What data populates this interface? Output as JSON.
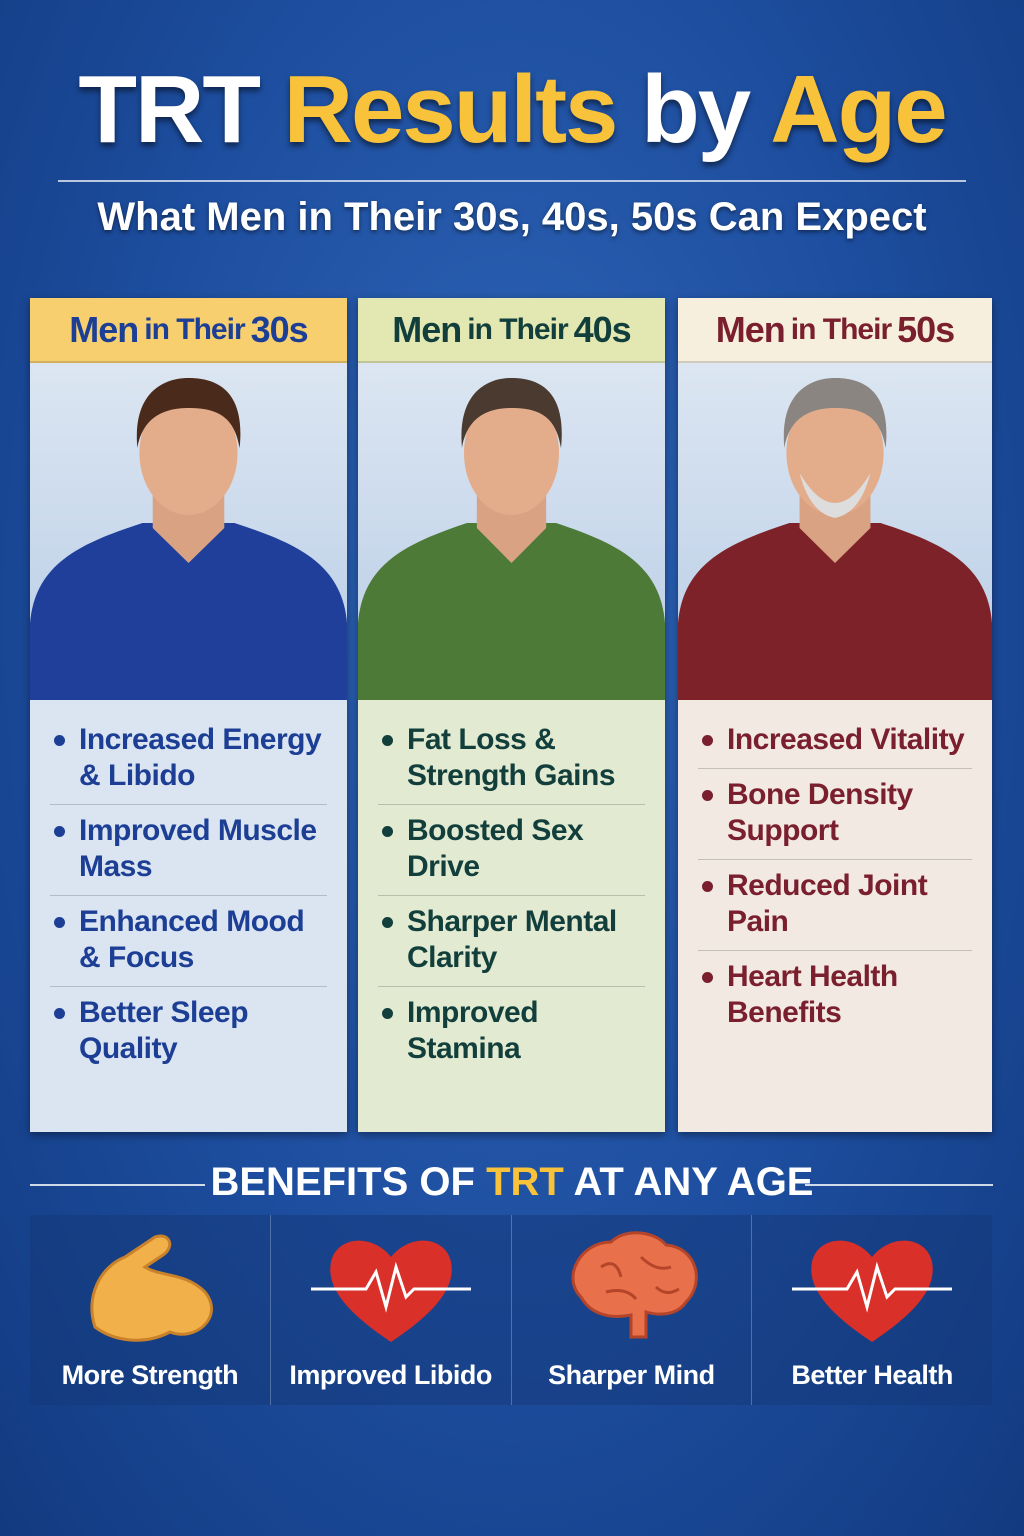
{
  "header": {
    "title_part1": "TRT",
    "title_part2": "Results",
    "title_part3": "by",
    "title_part4": "Age",
    "subtitle": "What Men in Their 30s, 40s, 50s Can Expect"
  },
  "columns": [
    {
      "men": "Men",
      "in_their": "in Their",
      "age": "30s",
      "header_color": "#f7cf6e",
      "text_color": "#1c3f95",
      "shirt_color": "#1f3f9a",
      "list_bg": "#dbe4f1",
      "items": [
        "Increased Energy & Libido",
        "Improved Muscle Mass",
        "Enhanced Mood & Focus",
        "Better Sleep Quality"
      ]
    },
    {
      "men": "Men",
      "in_their": "in Their",
      "age": "40s",
      "header_color": "#e3e7b2",
      "text_color": "#123f3c",
      "shirt_color": "#4d7a37",
      "list_bg": "#e2ead1",
      "items": [
        "Fat Loss & Strength Gains",
        "Boosted Sex Drive",
        "Sharper Mental Clarity",
        "Improved Stamina"
      ]
    },
    {
      "men": "Men",
      "in_their": "in Their",
      "age": "50s",
      "header_color": "#f6efdd",
      "text_color": "#7a1f2e",
      "shirt_color": "#7e2229",
      "list_bg": "#f1e9e2",
      "items": [
        "Increased Vitality",
        "Bone Density Support",
        "Reduced Joint Pain",
        "Heart Health Benefits"
      ]
    }
  ],
  "benefits": {
    "title_part1": "BENEFITS OF",
    "title_part2": "TRT",
    "title_part3": "AT ANY AGE",
    "items": [
      {
        "label": "More Strength",
        "icon": "flexed-bicep-icon"
      },
      {
        "label": "Improved Libido",
        "icon": "heart-pulse-icon"
      },
      {
        "label": "Sharper Mind",
        "icon": "brain-icon"
      },
      {
        "label": "Better Health",
        "icon": "heart-pulse-icon"
      }
    ]
  }
}
